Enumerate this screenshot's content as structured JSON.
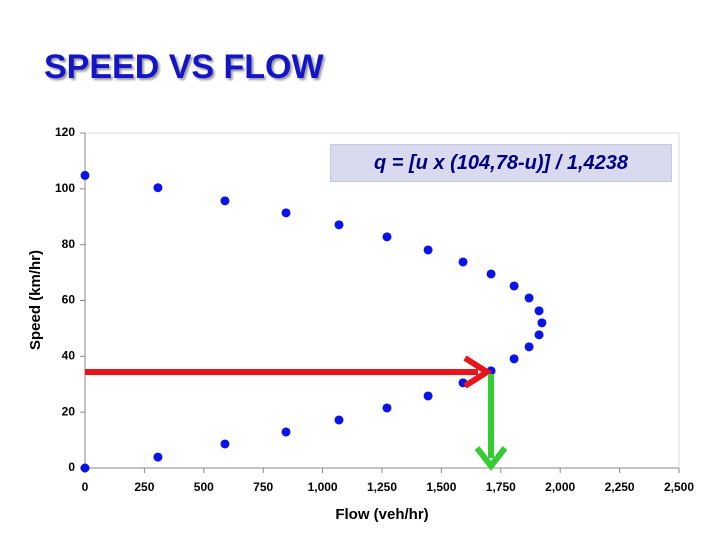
{
  "chart_data": {
    "type": "scatter",
    "title": "SPEED VS FLOW",
    "annotation": "q = [u x (104,78-u)] / 1,4238",
    "xlabel": "Flow (veh/hr)",
    "ylabel": "Speed (km/hr)",
    "color": "#0a14e6",
    "x": [
      0,
      307,
      589,
      846,
      1069,
      1271,
      1444,
      1591,
      1709,
      1806,
      1869,
      1911,
      1923,
      1911,
      1869,
      1806,
      1709,
      1591,
      1444,
      1271,
      1069,
      846,
      589,
      307,
      0
    ],
    "values": [
      104.8,
      100.4,
      95.7,
      91.4,
      87.1,
      82.8,
      78.1,
      73.8,
      69.5,
      65.2,
      60.9,
      56.3,
      52.0,
      47.7,
      43.4,
      39.1,
      34.8,
      30.5,
      25.8,
      21.5,
      17.2,
      12.9,
      8.6,
      3.9,
      0
    ],
    "xlim": [
      0,
      2500
    ],
    "ylim": [
      0,
      120
    ],
    "xticks": [
      0,
      250,
      500,
      750,
      {
        "value": 1000,
        "label": "1,000"
      },
      {
        "value": 1250,
        "label": "1,250"
      },
      {
        "value": 1500,
        "label": "1,500"
      },
      {
        "value": 1750,
        "label": "1,750"
      },
      {
        "value": 2000,
        "label": "2,000"
      },
      {
        "value": 2250,
        "label": "2,250"
      },
      {
        "value": 2500,
        "label": "2,500"
      }
    ],
    "yticks": [
      0,
      20,
      40,
      60,
      80,
      100,
      120
    ]
  }
}
